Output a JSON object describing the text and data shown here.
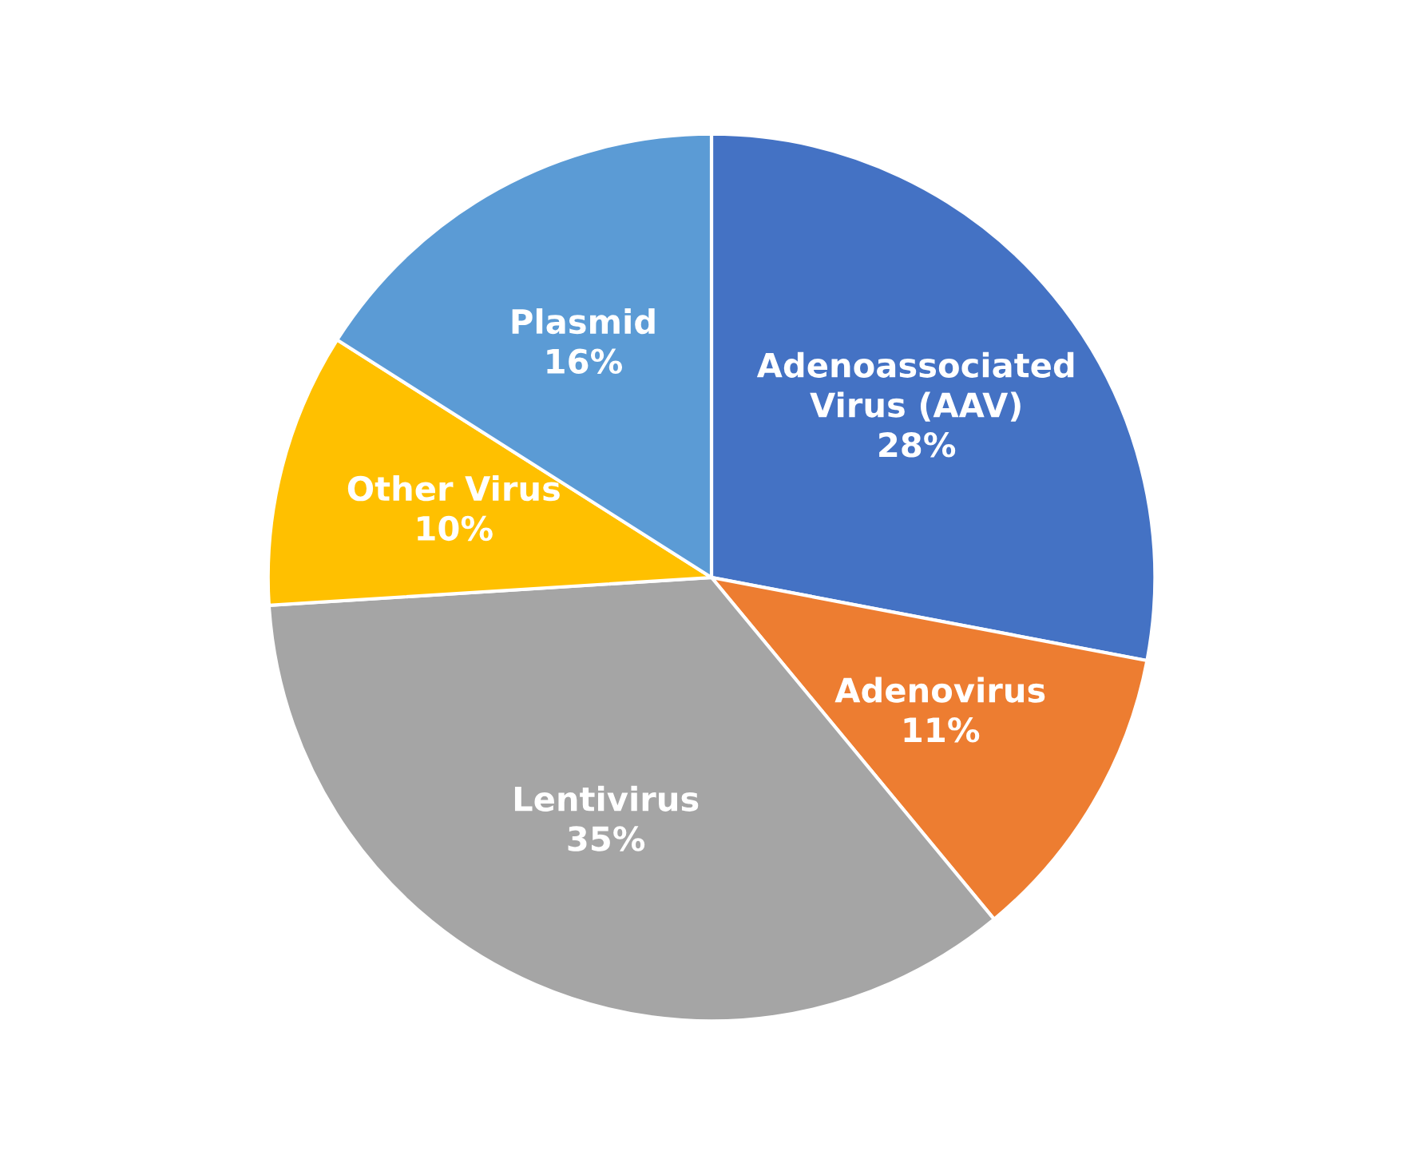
{
  "chart_data": {
    "type": "pie",
    "categories": [
      "Adenoassociated Virus (AAV)",
      "Adenovirus",
      "Lentivirus",
      "Other Virus",
      "Plasmid"
    ],
    "values": [
      28,
      11,
      35,
      10,
      16
    ],
    "value_labels": [
      "28%",
      "11%",
      "35%",
      "10%",
      "16%"
    ],
    "colors": [
      "#4472c4",
      "#ed7d31",
      "#a5a5a5",
      "#ffc000",
      "#5b9bd5"
    ],
    "legend": false
  }
}
